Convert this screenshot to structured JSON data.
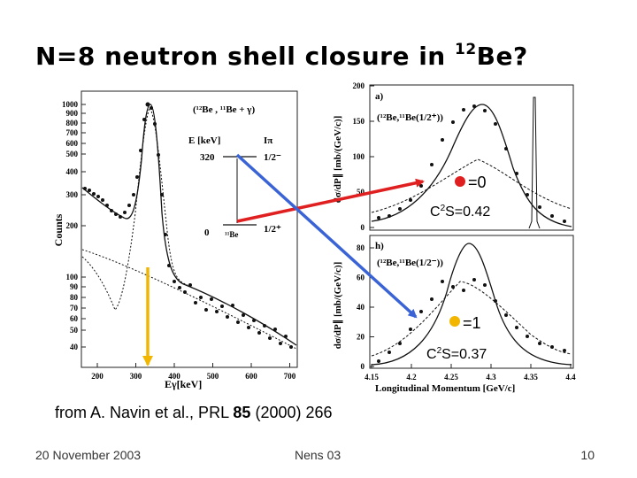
{
  "title": {
    "main": "N=8 neutron shell closure in ",
    "sup": "12",
    "element": "Be?"
  },
  "citation": {
    "prefix": "from A. Navin et al., PRL ",
    "volume": "85",
    "suffix": " (2000) 266"
  },
  "footer": {
    "date": "20 November 2003",
    "conference": "Nens 03",
    "page": "10"
  },
  "colors": {
    "red_arrow": "#e02020",
    "blue_arrow": "#3a63d6",
    "yellow_arrow": "#f2b600"
  },
  "spectrum": {
    "reaction": "(¹²Be , ¹¹Be + γ)",
    "y_ticks": [
      "1000",
      "900",
      "800",
      "700",
      "600",
      "500",
      "400",
      "300",
      "200",
      "100",
      "90",
      "80",
      "70",
      "60",
      "50",
      "40"
    ],
    "x_ticks": [
      "200",
      "300",
      "400",
      "500",
      "600",
      "700"
    ],
    "ylabel": "Counts",
    "xlabel": "Eγ[keV]",
    "level_header_e": "E [keV]",
    "level_header_i": "Iπ",
    "level1_e": "320",
    "level1_i": "1/2⁻",
    "level0_e": "0",
    "level0_nucleus": "¹¹Be",
    "level0_i": "1/2⁺"
  },
  "momentum": {
    "panel_a_label": "a)",
    "panel_a_reaction": "(¹²Be,¹¹Be(1/2⁺))",
    "panel_b_label": "h)",
    "panel_b_reaction": "(¹²Be,¹¹Be(1/2⁻))",
    "ylabel_a": "dσ/dP∥ [mb/(GeV/c)]",
    "ylabel_b": "dσ/dP∥ [mb/(GeV/c)]",
    "y_ticks_a": [
      "200",
      "150",
      "100",
      "50",
      "0"
    ],
    "y_ticks_b": [
      "80",
      "60",
      "40",
      "20",
      "0"
    ],
    "x_ticks": [
      "4.15",
      "4.2",
      "4.25",
      "4.3",
      "4.35",
      "4.4"
    ],
    "xlabel": "Longitudinal Momentum [GeV/c]"
  },
  "annotations": {
    "l0": "=0",
    "l0_sf_c": "C",
    "l0_sf_rest": "S=0.42",
    "l1": "=1",
    "l1_sf_c": "C",
    "l1_sf_rest": "S=0.37",
    "sf_exp": "2"
  }
}
